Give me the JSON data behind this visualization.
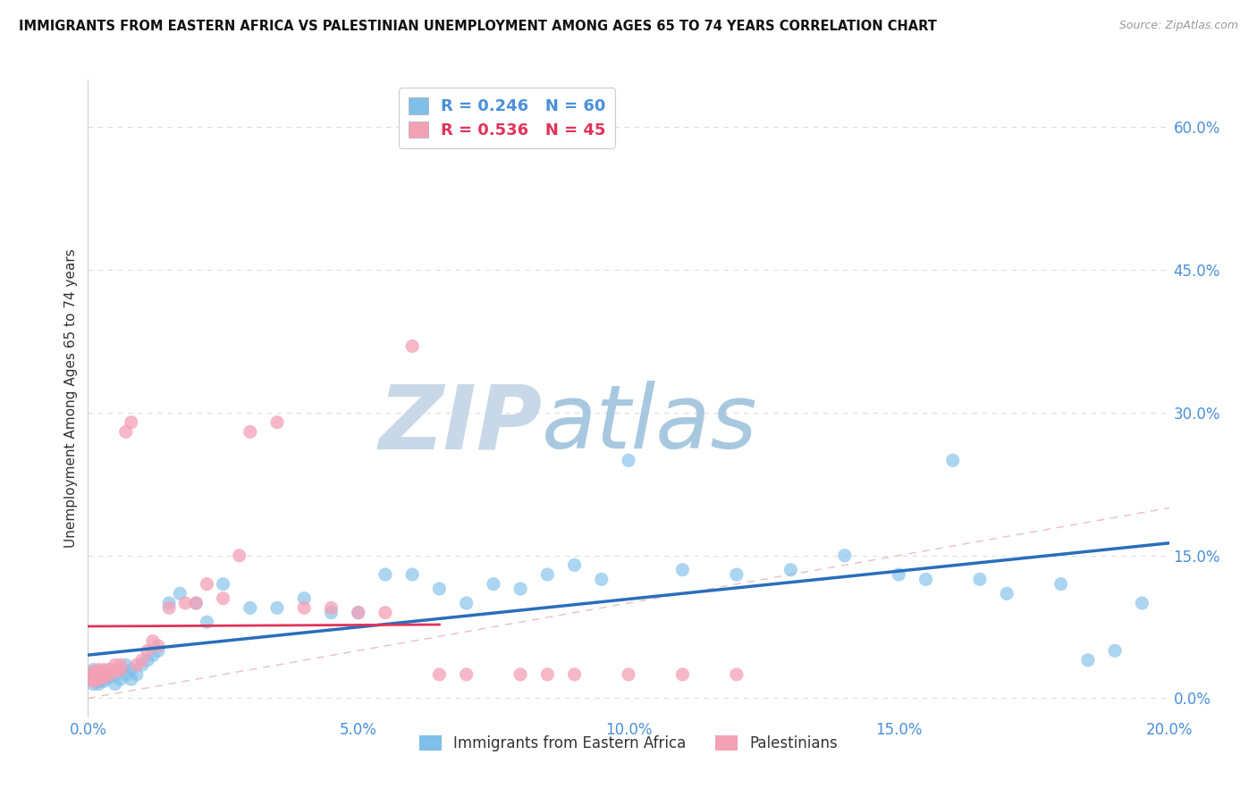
{
  "title": "IMMIGRANTS FROM EASTERN AFRICA VS PALESTINIAN UNEMPLOYMENT AMONG AGES 65 TO 74 YEARS CORRELATION CHART",
  "source": "Source: ZipAtlas.com",
  "ylabel": "Unemployment Among Ages 65 to 74 years",
  "legend_label1": "Immigrants from Eastern Africa",
  "legend_label2": "Palestinians",
  "R1": 0.246,
  "N1": 60,
  "R2": 0.536,
  "N2": 45,
  "color1": "#7fbfea",
  "color2": "#f4a0b5",
  "line_color1": "#2a6ebb",
  "line_color2": "#e0335a",
  "xlim": [
    0.0,
    0.2
  ],
  "ylim": [
    -0.02,
    0.65
  ],
  "yticks": [
    0.0,
    0.15,
    0.3,
    0.45,
    0.6
  ],
  "xticks": [
    0.0,
    0.05,
    0.1,
    0.15,
    0.2
  ],
  "background_color": "#ffffff",
  "watermark_zip": "ZIP",
  "watermark_atlas": "atlas",
  "watermark_color_zip": "#c8d8e8",
  "watermark_color_atlas": "#a8c8e0",
  "blue_x": [
    0.0,
    0.001,
    0.001,
    0.001,
    0.001,
    0.002,
    0.002,
    0.002,
    0.002,
    0.003,
    0.003,
    0.003,
    0.004,
    0.004,
    0.005,
    0.005,
    0.006,
    0.006,
    0.007,
    0.007,
    0.008,
    0.008,
    0.009,
    0.01,
    0.011,
    0.012,
    0.013,
    0.015,
    0.017,
    0.02,
    0.022,
    0.025,
    0.03,
    0.035,
    0.04,
    0.045,
    0.05,
    0.055,
    0.06,
    0.065,
    0.07,
    0.075,
    0.08,
    0.085,
    0.09,
    0.095,
    0.1,
    0.11,
    0.12,
    0.13,
    0.14,
    0.15,
    0.155,
    0.16,
    0.165,
    0.17,
    0.18,
    0.185,
    0.19,
    0.195
  ],
  "blue_y": [
    0.02,
    0.015,
    0.025,
    0.03,
    0.02,
    0.018,
    0.022,
    0.028,
    0.015,
    0.02,
    0.025,
    0.018,
    0.022,
    0.03,
    0.015,
    0.025,
    0.02,
    0.03,
    0.025,
    0.035,
    0.02,
    0.03,
    0.025,
    0.035,
    0.04,
    0.045,
    0.05,
    0.1,
    0.11,
    0.1,
    0.08,
    0.12,
    0.095,
    0.095,
    0.105,
    0.09,
    0.09,
    0.13,
    0.13,
    0.115,
    0.1,
    0.12,
    0.115,
    0.13,
    0.14,
    0.125,
    0.25,
    0.135,
    0.13,
    0.135,
    0.15,
    0.13,
    0.125,
    0.25,
    0.125,
    0.11,
    0.12,
    0.04,
    0.05,
    0.1
  ],
  "pink_x": [
    0.0,
    0.001,
    0.001,
    0.001,
    0.001,
    0.002,
    0.002,
    0.002,
    0.003,
    0.003,
    0.003,
    0.004,
    0.004,
    0.005,
    0.005,
    0.006,
    0.006,
    0.007,
    0.008,
    0.009,
    0.01,
    0.011,
    0.012,
    0.013,
    0.015,
    0.018,
    0.02,
    0.022,
    0.025,
    0.028,
    0.03,
    0.035,
    0.04,
    0.045,
    0.05,
    0.055,
    0.06,
    0.065,
    0.07,
    0.08,
    0.085,
    0.09,
    0.1,
    0.11,
    0.12
  ],
  "pink_y": [
    0.02,
    0.018,
    0.022,
    0.025,
    0.028,
    0.02,
    0.025,
    0.03,
    0.022,
    0.025,
    0.03,
    0.025,
    0.03,
    0.028,
    0.035,
    0.03,
    0.035,
    0.28,
    0.29,
    0.035,
    0.04,
    0.05,
    0.06,
    0.055,
    0.095,
    0.1,
    0.1,
    0.12,
    0.105,
    0.15,
    0.28,
    0.29,
    0.095,
    0.095,
    0.09,
    0.09,
    0.37,
    0.025,
    0.025,
    0.025,
    0.025,
    0.025,
    0.025,
    0.025,
    0.025
  ],
  "diag_line_color": "#ddbbbb"
}
